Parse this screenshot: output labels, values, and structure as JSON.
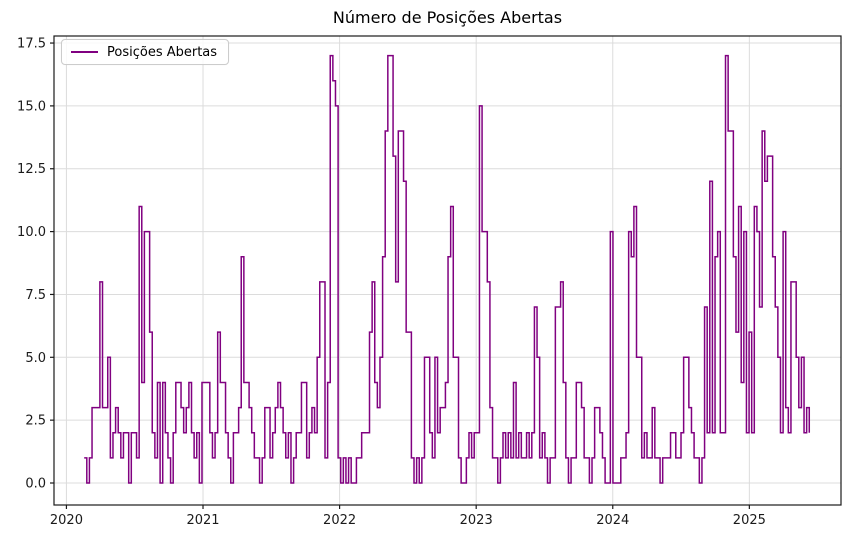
{
  "title": "Número de Posições Abertas",
  "colors": {
    "line": "#800080",
    "grid": "#dcdcdc",
    "spine": "#1a1a1a",
    "text": "#1a1a1a",
    "background": "#ffffff",
    "legend_border": "#cccccc"
  },
  "chart_data": {
    "type": "line",
    "style": "step-post",
    "title": "Número de Posições Abertas",
    "legend": [
      "Posições Abertas"
    ],
    "legend_position": "upper left",
    "grid": true,
    "xlabel": "",
    "ylabel": "",
    "x_unit": "fractional year, weekly samples",
    "x_start": 2020.13,
    "x_step": 0.019165,
    "xticks": [
      2020,
      2021,
      2022,
      2023,
      2024,
      2025
    ],
    "yticks": [
      0.0,
      2.5,
      5.0,
      7.5,
      10.0,
      12.5,
      15.0,
      17.5
    ],
    "xlim": [
      2019.909,
      2025.671
    ],
    "ylim": [
      -0.875,
      17.78
    ],
    "line_color": "#800080",
    "values": [
      1,
      0,
      1,
      3,
      3,
      3,
      8,
      3,
      3,
      5,
      1,
      2,
      3,
      2,
      1,
      2,
      2,
      0,
      2,
      2,
      1,
      11,
      4,
      10,
      10,
      6,
      2,
      1,
      4,
      0,
      4,
      2,
      1,
      0,
      2,
      4,
      4,
      3,
      2,
      3,
      4,
      2,
      1,
      2,
      0,
      4,
      4,
      4,
      2,
      1,
      2,
      6,
      4,
      4,
      2,
      1,
      0,
      2,
      2,
      3,
      9,
      4,
      4,
      3,
      2,
      1,
      1,
      0,
      1,
      3,
      3,
      1,
      2,
      3,
      4,
      3,
      2,
      1,
      2,
      0,
      1,
      2,
      2,
      4,
      4,
      1,
      2,
      3,
      2,
      5,
      8,
      8,
      1,
      4,
      17,
      16,
      15,
      1,
      0,
      1,
      0,
      1,
      0,
      0,
      1,
      1,
      2,
      2,
      2,
      6,
      8,
      4,
      3,
      5,
      9,
      14,
      17,
      17,
      13,
      8,
      14,
      14,
      12,
      6,
      6,
      1,
      0,
      1,
      0,
      1,
      5,
      5,
      2,
      1,
      5,
      2,
      3,
      3,
      4,
      9,
      11,
      5,
      5,
      1,
      0,
      0,
      1,
      2,
      1,
      2,
      2,
      15,
      10,
      10,
      8,
      3,
      1,
      1,
      0,
      1,
      2,
      1,
      2,
      1,
      4,
      1,
      2,
      1,
      1,
      2,
      1,
      2,
      7,
      5,
      1,
      2,
      1,
      0,
      1,
      1,
      7,
      7,
      8,
      4,
      1,
      0,
      1,
      1,
      4,
      4,
      3,
      1,
      1,
      0,
      1,
      3,
      3,
      2,
      1,
      0,
      0,
      10,
      0,
      0,
      0,
      1,
      1,
      2,
      10,
      9,
      11,
      5,
      5,
      1,
      2,
      1,
      1,
      3,
      1,
      1,
      0,
      1,
      1,
      1,
      2,
      2,
      1,
      1,
      2,
      5,
      5,
      3,
      2,
      1,
      1,
      0,
      1,
      7,
      2,
      12,
      2,
      9,
      10,
      2,
      2,
      17,
      14,
      14,
      9,
      6,
      11,
      4,
      10,
      2,
      6,
      2,
      11,
      10,
      7,
      14,
      12,
      13,
      13,
      9,
      7,
      5,
      2,
      10,
      3,
      2,
      8,
      8,
      5,
      3,
      5,
      2,
      3,
      2
    ]
  }
}
